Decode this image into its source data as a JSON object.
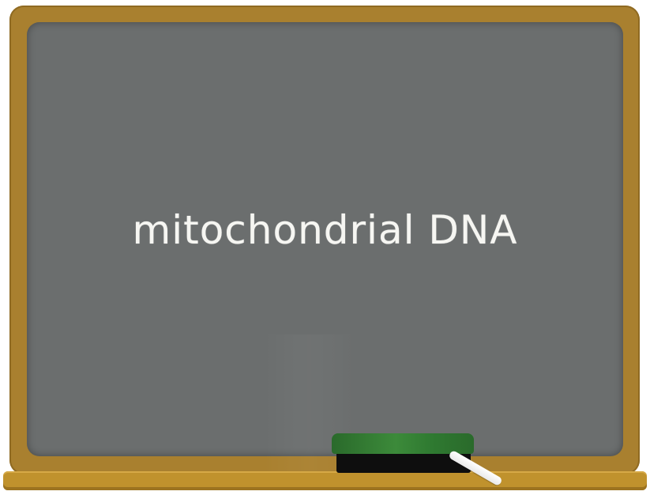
{
  "board": {
    "text": "mitochondrial DNA"
  },
  "colors": {
    "frame": "#a9802f",
    "board": "#6b6e6e",
    "ledge": "#c0922d",
    "chalk_text": "#f6f6f2",
    "eraser_felt": "#2f7a31",
    "eraser_base": "#0e0e0e"
  },
  "icons": {
    "eraser": "eraser-icon",
    "chalk": "chalk-icon"
  }
}
